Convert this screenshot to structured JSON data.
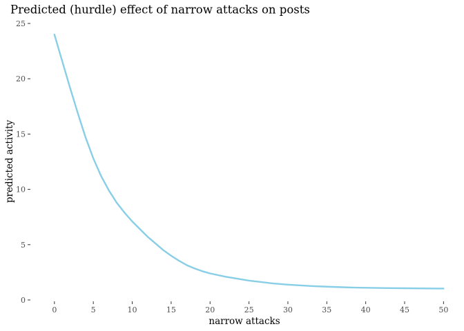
{
  "chart_data": {
    "type": "line",
    "title": "Predicted (hurdle) effect of narrow attacks on posts",
    "xlabel": "narrow attacks",
    "ylabel": "predicted activity",
    "xlim": [
      -3,
      50.5
    ],
    "ylim": [
      0,
      25
    ],
    "x_ticks": [
      0,
      5,
      10,
      15,
      20,
      25,
      30,
      35,
      40,
      45,
      50
    ],
    "y_ticks": [
      0,
      5,
      10,
      15,
      20,
      25
    ],
    "grid": false,
    "legend": "none",
    "series": [
      {
        "color": "#87CEE6",
        "x": [
          0,
          1,
          2,
          3,
          4,
          5,
          6,
          7,
          8,
          9,
          10,
          11,
          12,
          13,
          14,
          15,
          16,
          17,
          18,
          19,
          20,
          22,
          25,
          28,
          30,
          33,
          35,
          38,
          40,
          43,
          45,
          48,
          50
        ],
        "y": [
          24.0,
          21.6,
          19.2,
          16.9,
          14.7,
          12.8,
          11.2,
          9.9,
          8.8,
          7.9,
          7.1,
          6.4,
          5.7,
          5.1,
          4.5,
          4.0,
          3.55,
          3.15,
          2.85,
          2.6,
          2.4,
          2.1,
          1.75,
          1.5,
          1.38,
          1.26,
          1.2,
          1.13,
          1.1,
          1.07,
          1.06,
          1.04,
          1.03
        ]
      }
    ]
  }
}
